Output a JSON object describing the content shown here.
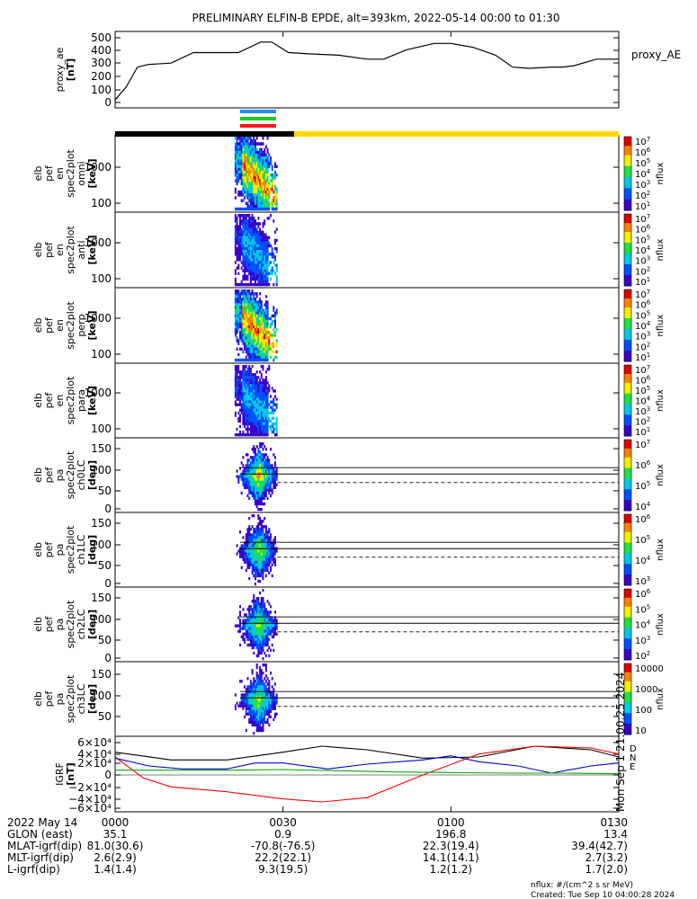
{
  "title": "PRELIMINARY ELFIN-B EPDE, alt=393km, 2022-05-14 00:00 to 01:30",
  "panels": [
    {
      "id": "proxy_ae",
      "ylabel": [
        "proxy_ae",
        "[nT]"
      ],
      "yticks": [
        "500",
        "400",
        "300",
        "200",
        "100",
        "0"
      ],
      "right_label": "proxy_AE"
    },
    {
      "id": "omni",
      "ylabel": [
        "elb",
        "pef",
        "en",
        "spec2plot",
        "omni",
        "[keV]"
      ],
      "yticks": [
        "1000",
        "100"
      ],
      "cbar_ticks": [
        "10",
        "10",
        "10",
        "10",
        "10",
        "10",
        "10"
      ],
      "cbar_exp": [
        "7",
        "6",
        "5",
        "4",
        "3",
        "2",
        "1"
      ],
      "cbar_label": "nflux"
    },
    {
      "id": "anti",
      "ylabel": [
        "elb",
        "pef",
        "en",
        "spec2plot",
        "anti",
        "[keV]"
      ],
      "yticks": [
        "1000",
        "100"
      ],
      "cbar_ticks": [
        "10",
        "10",
        "10",
        "10",
        "10",
        "10",
        "10"
      ],
      "cbar_exp": [
        "7",
        "6",
        "5",
        "4",
        "3",
        "2",
        "1"
      ],
      "cbar_label": "nflux"
    },
    {
      "id": "perp",
      "ylabel": [
        "elb",
        "pef",
        "en",
        "spec2plot",
        "perp",
        "[keV]"
      ],
      "yticks": [
        "1000",
        "100"
      ],
      "cbar_ticks": [
        "10",
        "10",
        "10",
        "10",
        "10",
        "10",
        "10"
      ],
      "cbar_exp": [
        "7",
        "6",
        "5",
        "4",
        "3",
        "2",
        "1"
      ],
      "cbar_label": "nflux"
    },
    {
      "id": "para",
      "ylabel": [
        "elb",
        "pef",
        "en",
        "spec2plot",
        "para",
        "[keV]"
      ],
      "yticks": [
        "1000",
        "100"
      ],
      "cbar_ticks": [
        "10",
        "10",
        "10",
        "10",
        "10",
        "10",
        "10"
      ],
      "cbar_exp": [
        "7",
        "6",
        "5",
        "4",
        "3",
        "2",
        "1"
      ],
      "cbar_label": "nflux"
    },
    {
      "id": "ch0",
      "ylabel": [
        "elb",
        "pef",
        "pa",
        "spec2plot",
        "ch0LC",
        "[deg]"
      ],
      "yticks": [
        "150",
        "100",
        "50",
        "0"
      ],
      "cbar_ticks": [
        "10",
        "10",
        "10",
        "10"
      ],
      "cbar_exp": [
        "7",
        "6",
        "5",
        "4"
      ],
      "cbar_label": "nflux"
    },
    {
      "id": "ch1",
      "ylabel": [
        "elb",
        "pef",
        "pa",
        "spec2plot",
        "ch1LC",
        "[deg]"
      ],
      "yticks": [
        "150",
        "100",
        "50",
        "0"
      ],
      "cbar_ticks": [
        "10",
        "10",
        "10",
        "10"
      ],
      "cbar_exp": [
        "6",
        "5",
        "4",
        "3"
      ],
      "cbar_label": "nflux"
    },
    {
      "id": "ch2",
      "ylabel": [
        "elb",
        "pef",
        "pa",
        "spec2plot",
        "ch2LC",
        "[deg]"
      ],
      "yticks": [
        "150",
        "100",
        "50",
        "0"
      ],
      "cbar_ticks": [
        "10",
        "10",
        "10",
        "10",
        "10"
      ],
      "cbar_exp": [
        "6",
        "5",
        "4",
        "3",
        "2"
      ],
      "cbar_label": "nflux"
    },
    {
      "id": "ch3",
      "ylabel": [
        "elb",
        "pef",
        "pa",
        "spec2plot",
        "ch3LC",
        "[deg]"
      ],
      "yticks": [
        "150",
        "100",
        "50"
      ],
      "cbar_ticks": [
        "10000",
        "1000",
        "100",
        "10"
      ],
      "cbar_exp": [
        "",
        "",
        "",
        ""
      ],
      "cbar_label": "nflux"
    },
    {
      "id": "igrf",
      "ylabel": [
        "IGRF",
        "[nT]"
      ],
      "yticks": [
        "6×10⁴",
        "4×10⁴",
        "2×10⁴",
        "0",
        "−2×10⁴",
        "−4×10⁴",
        "−6×10⁴"
      ],
      "legend": [
        "D",
        "N",
        "E"
      ],
      "side_note": "Mon Sep 1 21:00:25 2024"
    }
  ],
  "xaxis": {
    "rows": [
      {
        "label": "2022 May 14",
        "values": [
          "0000",
          "0030",
          "0100",
          "0130"
        ]
      },
      {
        "label": "GLON (east)",
        "values": [
          "35.1",
          "0.9",
          "196.8",
          "13.4"
        ]
      },
      {
        "label": "MLAT-igrf(dip)",
        "values": [
          "81.0(30.6)",
          "-70.8(-76.5)",
          "22.3(19.4)",
          "39.4(42.7)"
        ]
      },
      {
        "label": "MLT-igrf(dip)",
        "values": [
          "2.6(2.9)",
          "22.2(22.1)",
          "14.1(14.1)",
          "2.7(3.2)"
        ]
      },
      {
        "label": "L-igrf(dip)",
        "values": [
          "1.4(1.4)",
          "9.3(19.5)",
          "1.2(1.2)",
          "1.7(2.0)"
        ]
      }
    ]
  },
  "footer": {
    "units": "nflux: #/(cm^2 s sr MeV)",
    "created": "Created: Tue Sep 10 04:00:28 2024"
  },
  "chart_data": {
    "type": "line",
    "title": "PRELIMINARY ELFIN-B EPDE, alt=393km, 2022-05-14 00:00 to 01:30",
    "x_range_minutes": [
      0,
      90
    ],
    "proxy_ae": {
      "ylabel": "proxy_ae [nT]",
      "ylim": [
        0,
        500
      ],
      "x": [
        0,
        2,
        4,
        6,
        10,
        14,
        17,
        22,
        26,
        28,
        31,
        35,
        40,
        45,
        48,
        52,
        57,
        60,
        64,
        68,
        71,
        74,
        78,
        80,
        82,
        86,
        90
      ],
      "y": [
        20,
        120,
        270,
        290,
        300,
        380,
        380,
        380,
        460,
        460,
        380,
        370,
        360,
        330,
        330,
        400,
        450,
        450,
        420,
        360,
        270,
        260,
        270,
        270,
        280,
        330,
        330
      ]
    },
    "igrf": {
      "ylabel": "IGRF [nT]",
      "ylim": [
        -60000,
        60000
      ],
      "series": [
        {
          "name": "D",
          "color": "#000000",
          "x": [
            0,
            10,
            20,
            30,
            37,
            45,
            55,
            65,
            75,
            85,
            90
          ],
          "y": [
            38000,
            25000,
            25000,
            38000,
            48000,
            42000,
            28000,
            30000,
            48000,
            42000,
            30000
          ]
        },
        {
          "name": "N",
          "color": "#ff0000",
          "x": [
            0,
            5,
            10,
            20,
            30,
            37,
            45,
            55,
            65,
            75,
            85,
            90
          ],
          "y": [
            30000,
            -5000,
            -20000,
            -28000,
            -40000,
            -45000,
            -38000,
            0,
            35000,
            48000,
            45000,
            35000
          ]
        },
        {
          "name": "E",
          "color": "#0000cc",
          "x": [
            0,
            6,
            12,
            20,
            25,
            30,
            38,
            45,
            55,
            60,
            65,
            72,
            78,
            85,
            90
          ],
          "y": [
            28000,
            15000,
            10000,
            10000,
            20000,
            20000,
            10000,
            18000,
            25000,
            32000,
            22000,
            15000,
            3000,
            15000,
            20000
          ]
        },
        {
          "name": "E",
          "color": "#00aa00",
          "x": [
            0,
            20,
            30,
            40,
            50,
            60,
            70,
            80,
            90
          ],
          "y": [
            8000,
            8000,
            9000,
            7000,
            5000,
            4000,
            3000,
            3000,
            2000
          ]
        }
      ]
    },
    "spectrograms": {
      "active_interval_minutes": [
        22,
        29
      ],
      "energy_range_keV": [
        60,
        7000
      ],
      "pitch_angle_range_deg": [
        0,
        180
      ],
      "loss_cone_solid_deg": [
        110,
        93
      ],
      "loss_cone_dashed_deg": 70
    },
    "status_bar": {
      "segments": [
        {
          "from": 0,
          "to": 32,
          "color": "#000000"
        },
        {
          "from": 32,
          "to": 90,
          "color": "#ffd700"
        }
      ],
      "markers": [
        {
          "color": "#1e90ff"
        },
        {
          "color": "#22cc22"
        },
        {
          "color": "#ff1a1a"
        }
      ]
    }
  }
}
